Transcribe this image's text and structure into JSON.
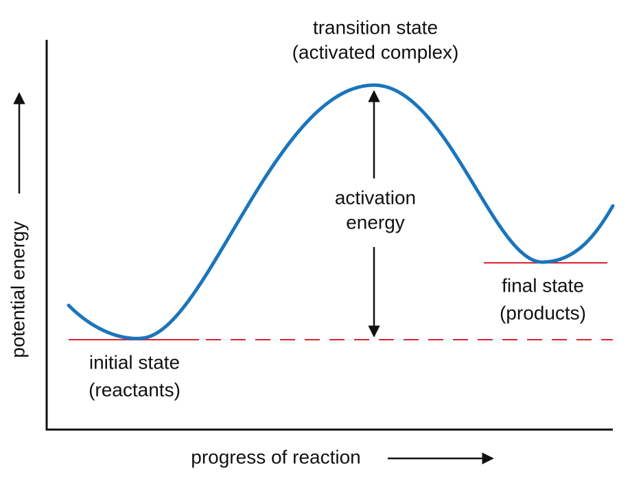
{
  "diagram": {
    "transition_state": {
      "line1": "transition state",
      "line2": "(activated complex)"
    },
    "activation_energy": {
      "line1": "activation",
      "line2": "energy"
    },
    "initial_state": {
      "line1": "initial state",
      "line2": "(reactants)"
    },
    "final_state": {
      "line1": "final state",
      "line2": "(products)"
    },
    "x_axis_label": "progress of reaction",
    "y_axis_label": "potential energy"
  }
}
